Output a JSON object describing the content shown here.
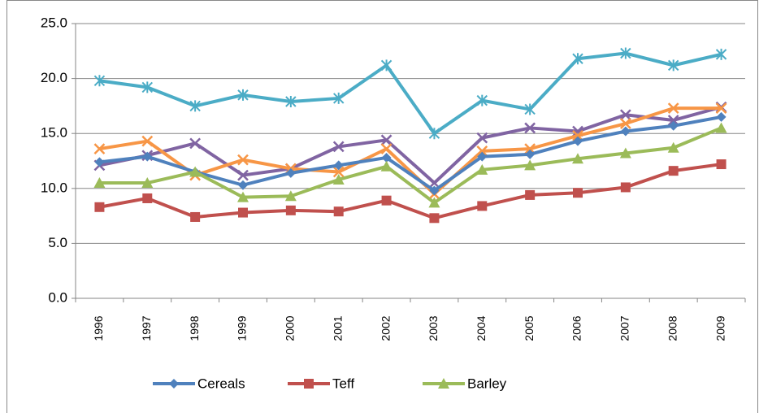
{
  "chart_data": {
    "type": "line",
    "categories": [
      "1996",
      "1997",
      "1998",
      "1999",
      "2000",
      "2001",
      "2002",
      "2003",
      "2004",
      "2005",
      "2006",
      "2007",
      "2008",
      "2009"
    ],
    "series": [
      {
        "values": [
          19.8,
          19.2,
          17.5,
          18.5,
          17.9,
          18.2,
          21.2,
          15.0,
          18.0,
          17.2,
          21.8,
          22.3,
          21.2,
          22.2
        ],
        "color": "#4bacc6",
        "marker": "star"
      },
      {
        "values": [
          12.1,
          13.0,
          14.1,
          11.2,
          11.8,
          13.8,
          14.4,
          10.5,
          14.6,
          15.5,
          15.2,
          16.7,
          16.2,
          17.4
        ],
        "color": "#8064a2",
        "marker": "x"
      },
      {
        "values": [
          13.6,
          14.3,
          11.2,
          12.6,
          11.8,
          11.5,
          13.6,
          9.5,
          13.4,
          13.6,
          14.8,
          15.9,
          17.3,
          17.3
        ],
        "color": "#f79646",
        "marker": "x"
      },
      {
        "name": "Cereals",
        "values": [
          12.4,
          12.9,
          11.5,
          10.3,
          11.4,
          12.1,
          12.8,
          9.8,
          12.9,
          13.1,
          14.3,
          15.2,
          15.7,
          16.5
        ],
        "color": "#4f81bd",
        "marker": "diamond"
      },
      {
        "name": "Teff",
        "values": [
          8.3,
          9.1,
          7.4,
          7.8,
          8.0,
          7.9,
          8.9,
          7.3,
          8.4,
          9.4,
          9.6,
          10.1,
          11.6,
          12.2
        ],
        "color": "#c0504d",
        "marker": "square"
      },
      {
        "name": "Barley",
        "values": [
          10.5,
          10.5,
          11.5,
          9.2,
          9.3,
          10.8,
          12.0,
          8.7,
          11.7,
          12.1,
          12.7,
          13.2,
          13.7,
          15.5
        ],
        "color": "#9bbb59",
        "marker": "triangle"
      }
    ],
    "ylim": [
      0,
      25
    ],
    "yticks": [
      {
        "value": 0,
        "label": "0.0"
      },
      {
        "value": 5,
        "label": "5.0"
      },
      {
        "value": 10,
        "label": "10.0"
      },
      {
        "value": 15,
        "label": "15.0"
      },
      {
        "value": 20,
        "label": "20.0"
      },
      {
        "value": 25,
        "label": "25.0"
      }
    ],
    "grid": true
  }
}
